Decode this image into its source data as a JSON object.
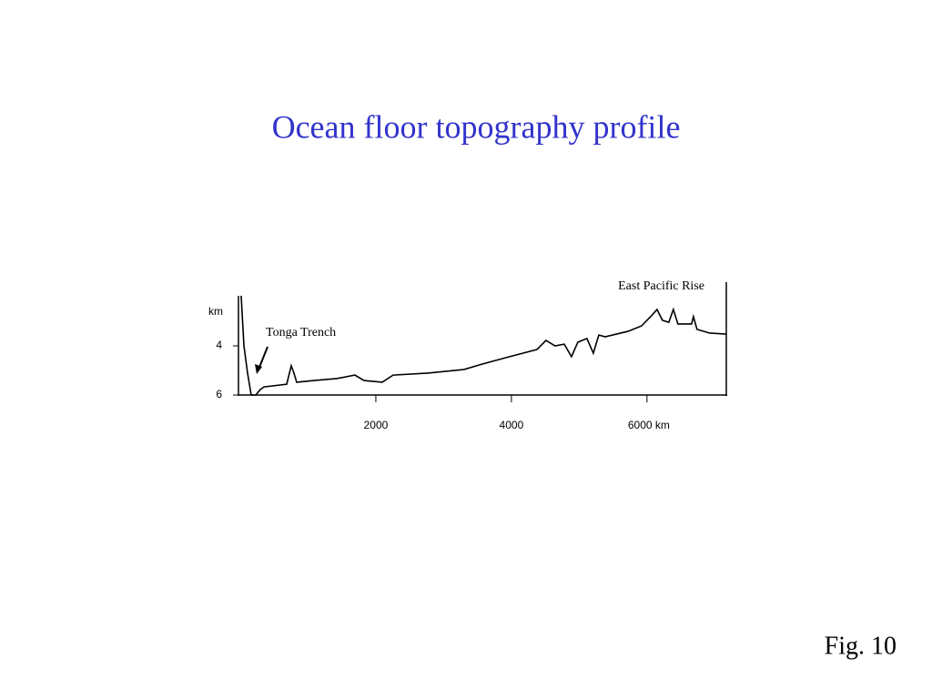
{
  "chart_data": {
    "type": "line",
    "title": "Ocean floor topography profile",
    "y_label": "km",
    "annotations": [
      "Tonga Trench",
      "East Pacific Rise"
    ],
    "x": [
      13,
      54,
      107,
      161,
      228,
      295,
      349,
      685,
      752,
      792,
      832,
      1087,
      1423,
      1691,
      1826,
      2094,
      2255,
      2765,
      3302,
      3570,
      3973,
      4376,
      4510,
      4644,
      4779,
      4886,
      4980,
      5114,
      5208,
      5289,
      5383,
      5718,
      5919,
      6054,
      6148,
      6228,
      6322,
      6389,
      6456,
      6658,
      6685,
      6738,
      6926,
      7168
    ],
    "values": [
      1.96,
      4,
      5.1,
      6,
      6,
      5.78,
      5.67,
      5.56,
      4.81,
      5.11,
      5.48,
      5.41,
      5.33,
      5.19,
      5.41,
      5.48,
      5.19,
      5.11,
      4.96,
      4.74,
      4.44,
      4.15,
      3.78,
      4,
      3.93,
      4.44,
      3.85,
      3.7,
      4.3,
      3.56,
      3.63,
      3.41,
      3.19,
      2.81,
      2.52,
      2.96,
      3.04,
      2.52,
      3.11,
      3.11,
      2.81,
      3.33,
      3.48,
      3.52
    ],
    "color": "#000000",
    "xlim": [
      0,
      7170
    ],
    "xticks": [
      2000,
      4000,
      {
        "value": 6000,
        "label": "6000 km"
      }
    ],
    "ylim": [
      6,
      2
    ],
    "yticks": [
      4,
      6
    ]
  },
  "figure_label": "Fig. 10"
}
